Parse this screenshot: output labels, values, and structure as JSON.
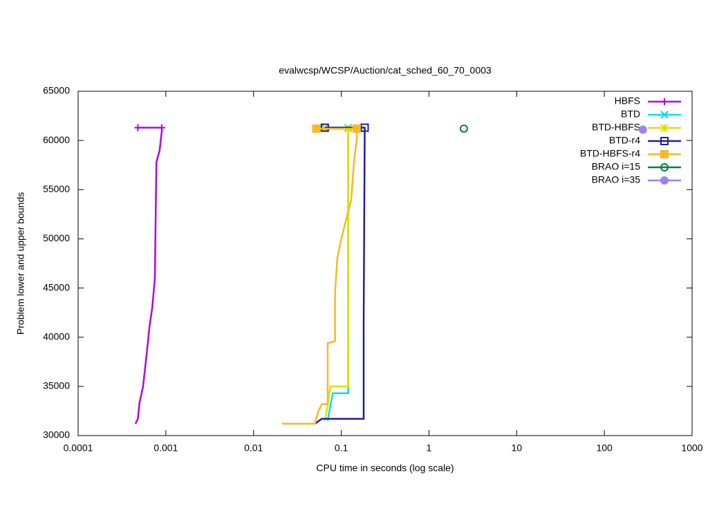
{
  "chart_data": {
    "type": "line",
    "title": "evalwcsp/WCSP/Auction/cat_sched_60_70_0003",
    "xlabel": "CPU time in seconds (log scale)",
    "ylabel": "Problem lower and upper bounds",
    "xscale": "log",
    "xlim": [
      0.0001,
      1000
    ],
    "xticks": [
      0.0001,
      0.001,
      0.01,
      0.1,
      1,
      10,
      100,
      1000
    ],
    "ylim": [
      30000,
      65000
    ],
    "yticks": [
      30000,
      35000,
      40000,
      45000,
      50000,
      55000,
      60000,
      65000
    ],
    "legend": "top-right",
    "series": [
      {
        "name": "HBFS",
        "color": "#b000f0",
        "marker": "plus",
        "x": [
          0.00045,
          0.00048,
          0.0005,
          0.00055,
          0.0006,
          0.00065,
          0.0007,
          0.00075,
          0.00078,
          0.00085,
          0.0009,
          0.0009,
          0.00048
        ],
        "values": [
          31200,
          31700,
          33300,
          35000,
          38000,
          41000,
          43000,
          46000,
          57800,
          59000,
          61000,
          61300,
          61300
        ]
      },
      {
        "name": "BTD",
        "color": "#00e0e0",
        "marker": "cross",
        "x": [
          0.07,
          0.075,
          0.08,
          0.12,
          0.12,
          0.12,
          0.065
        ],
        "values": [
          31500,
          33000,
          34300,
          34300,
          61000,
          61300,
          61300
        ]
      },
      {
        "name": "BTD-HBFS",
        "color": "#e0e000",
        "marker": "star",
        "x": [
          0.065,
          0.07,
          0.075,
          0.12,
          0.12,
          0.12,
          0.063
        ],
        "values": [
          31500,
          33000,
          35000,
          35000,
          61000,
          61200,
          61200
        ]
      },
      {
        "name": "BTD-r4",
        "color": "#1c1cb0",
        "marker": "square",
        "x": [
          0.05,
          0.06,
          0.18,
          0.18,
          0.185,
          0.185,
          0.065
        ],
        "values": [
          31200,
          31700,
          31700,
          42000,
          61000,
          61300,
          61300
        ]
      },
      {
        "name": "BTD-HBFS-r4",
        "color": "#f8b820",
        "marker": "filled-square",
        "x": [
          0.021,
          0.05,
          0.055,
          0.06,
          0.07,
          0.07,
          0.085,
          0.085,
          0.09,
          0.1,
          0.13,
          0.14,
          0.15,
          0.15,
          0.052
        ],
        "values": [
          31200,
          31200,
          32500,
          33200,
          33200,
          39400,
          39600,
          44500,
          48000,
          50000,
          54000,
          58000,
          60000,
          61200,
          61200
        ]
      },
      {
        "name": "BRAO i=15",
        "color": "#007f3f",
        "marker": "circle",
        "x": [
          2.5
        ],
        "values": [
          61200
        ]
      },
      {
        "name": "BRAO i=35",
        "color": "#a080f0",
        "marker": "filled-circle",
        "x": [
          275
        ],
        "values": [
          61100
        ]
      }
    ]
  }
}
